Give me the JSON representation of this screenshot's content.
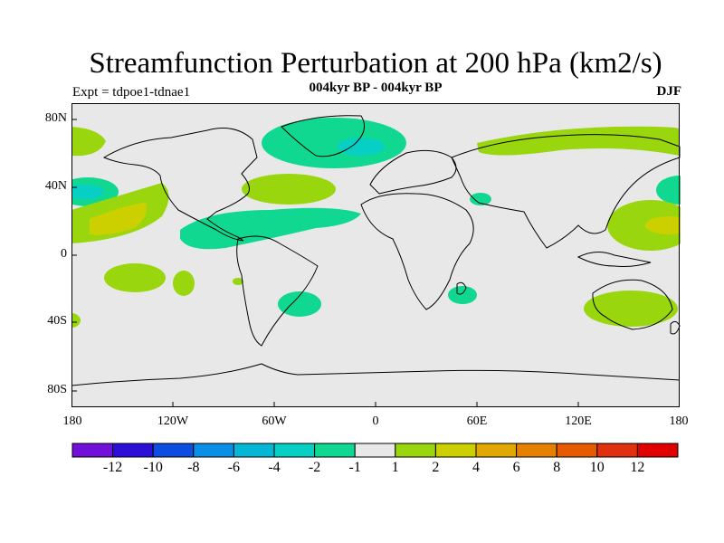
{
  "title": "Streamfunction Perturbation at 200 hPa (km2/s)",
  "subtitle": "004kyr BP - 004kyr BP",
  "experiment": "Expt = tdpoe1-tdnae1",
  "season": "DJF",
  "map": {
    "projection": "cylindrical-equidistant",
    "lat_ticks": [
      "80N",
      "40N",
      "0",
      "40S",
      "80S"
    ],
    "lon_ticks": [
      "180",
      "120W",
      "60W",
      "0",
      "60E",
      "120E",
      "180"
    ],
    "background_color": "#e8e8e8"
  },
  "colorbar": {
    "colors": [
      "#7010d8",
      "#2d10d8",
      "#0d4ee0",
      "#0a8fe6",
      "#05b7d4",
      "#07cfc4",
      "#10d890",
      "#e8e8e8",
      "#9ad60e",
      "#ccd000",
      "#e0a800",
      "#e68000",
      "#e65a00",
      "#e03010",
      "#e00000"
    ],
    "labels": [
      "-12",
      "-10",
      "-8",
      "-6",
      "-4",
      "-2",
      "-1",
      "1",
      "2",
      "4",
      "6",
      "8",
      "10",
      "12"
    ]
  }
}
